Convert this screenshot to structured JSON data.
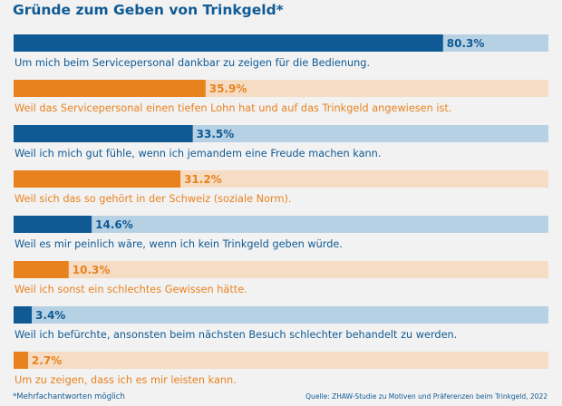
{
  "chart_data": {
    "type": "bar",
    "title": "Gründe zum Geben von Trinkgeld*",
    "xlim": [
      0,
      100
    ],
    "colors": {
      "blue": "#0f5a94",
      "blue_track": "#b7d1e4",
      "orange": "#e8821f",
      "orange_track": "#f6dcc3",
      "blue_text": "#0f5a94",
      "orange_text": "#e8821f"
    },
    "bars": [
      {
        "label": "Um mich beim Servicepersonal dankbar zu zeigen für die Bedienung.",
        "value": 80.3,
        "value_label": "80.3%",
        "color": "blue"
      },
      {
        "label": "Weil das Servicepersonal einen tiefen Lohn hat und auf das Trinkgeld angewiesen ist.",
        "value": 35.9,
        "value_label": "35.9%",
        "color": "orange"
      },
      {
        "label": "Weil ich mich gut fühle, wenn ich jemandem eine Freude machen kann.",
        "value": 33.5,
        "value_label": "33.5%",
        "color": "blue"
      },
      {
        "label": "Weil sich das so gehört in der Schweiz (soziale Norm).",
        "value": 31.2,
        "value_label": "31.2%",
        "color": "orange"
      },
      {
        "label": "Weil es mir peinlich wäre, wenn ich kein Trinkgeld geben würde.",
        "value": 14.6,
        "value_label": "14.6%",
        "color": "blue"
      },
      {
        "label": "Weil ich sonst ein schlechtes Gewissen hätte.",
        "value": 10.3,
        "value_label": "10.3%",
        "color": "orange"
      },
      {
        "label": "Weil ich befürchte, ansonsten beim nächsten Besuch schlechter behandelt zu werden.",
        "value": 3.4,
        "value_label": "3.4%",
        "color": "blue"
      },
      {
        "label": "Um zu zeigen, dass ich es mir leisten kann.",
        "value": 2.7,
        "value_label": "2.7%",
        "color": "orange"
      }
    ],
    "footnote": "*Mehrfachantworten möglich",
    "source": "Quelle: ZHAW-Studie zu Motiven und Präferenzen beim Trinkgeld, 2022"
  }
}
